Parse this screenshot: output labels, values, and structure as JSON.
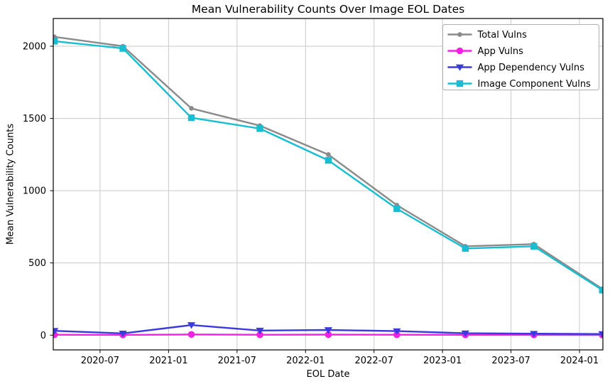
{
  "chart_data": {
    "type": "line",
    "title": "Mean Vulnerability Counts Over Image EOL Dates",
    "xlabel": "EOL Date",
    "ylabel": "Mean Vulnerability Counts",
    "categories": [
      "2020-03",
      "2020-09",
      "2021-03",
      "2021-09",
      "2022-03",
      "2022-09",
      "2023-03",
      "2023-09",
      "2024-03"
    ],
    "x_months_since_2020_01": [
      2,
      8,
      14,
      20,
      26,
      32,
      38,
      44,
      50
    ],
    "x_tick_months": [
      6,
      12,
      18,
      24,
      30,
      36,
      42,
      48
    ],
    "x_tick_labels": [
      "2020-07",
      "2021-01",
      "2021-07",
      "2022-01",
      "2022-07",
      "2023-01",
      "2023-07",
      "2024-01"
    ],
    "y_ticks": [
      0,
      500,
      1000,
      1500,
      2000
    ],
    "xlim_months": [
      1.9,
      50.05
    ],
    "ylim": [
      -102,
      2192
    ],
    "grid": true,
    "legend_position": "upper right",
    "series": [
      {
        "name": "Total Vulns",
        "color": "#8a8a8a",
        "marker": "circle-small",
        "values": [
          2065,
          2000,
          1570,
          1450,
          1250,
          900,
          615,
          630,
          320
        ]
      },
      {
        "name": "App Vulns",
        "color": "#f322e2",
        "marker": "circle",
        "values": [
          3,
          2,
          5,
          3,
          4,
          3,
          2,
          2,
          1
        ]
      },
      {
        "name": "App Dependency Vulns",
        "color": "#3a3ade",
        "marker": "triangle-down",
        "values": [
          30,
          12,
          70,
          32,
          36,
          28,
          13,
          10,
          8
        ]
      },
      {
        "name": "Image Component Vulns",
        "color": "#17becf",
        "marker": "square",
        "values": [
          2035,
          1985,
          1505,
          1430,
          1210,
          875,
          600,
          615,
          312
        ]
      }
    ],
    "colors": {
      "grid": "#c9c9c9",
      "frame": "#000000",
      "background": "#ffffff",
      "text": "#000000",
      "legend_border": "#b0b0b0"
    }
  }
}
